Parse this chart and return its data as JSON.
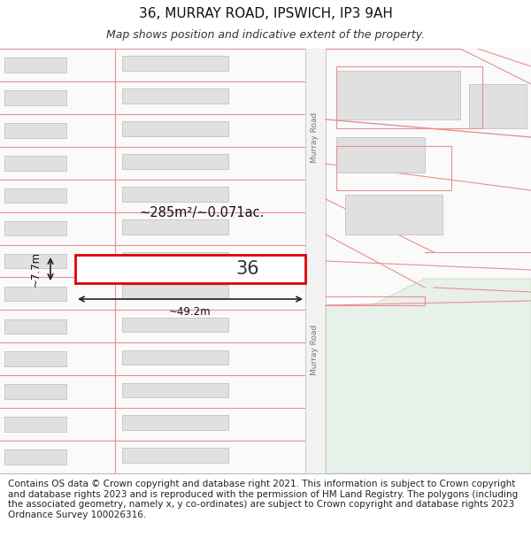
{
  "title": "36, MURRAY ROAD, IPSWICH, IP3 9AH",
  "subtitle": "Map shows position and indicative extent of the property.",
  "footer": "Contains OS data © Crown copyright and database right 2021. This information is subject to Crown copyright and database rights 2023 and is reproduced with the permission of HM Land Registry. The polygons (including the associated geometry, namely x, y co-ordinates) are subject to Crown copyright and database rights 2023 Ordnance Survey 100026316.",
  "title_fontsize": 11,
  "subtitle_fontsize": 9,
  "footer_fontsize": 7.5,
  "road_pink": "#f5b8b8",
  "road_edge": "#e89090",
  "building_fill": "#e0e0e0",
  "building_edge": "#bbbbbb",
  "green_fill": "#e8f0ea",
  "green_edge": "#d0e0d0",
  "murray_road_color": "#f0f0f0",
  "street_label": "Murray Road",
  "area_text": "~285m²/~0.071ac.",
  "width_text": "~49.2m",
  "height_text": "~7.7m",
  "number_text": "36",
  "prop_edge": "#dd0000",
  "bg_white": "#ffffff",
  "bg_light": "#f8f8f8"
}
